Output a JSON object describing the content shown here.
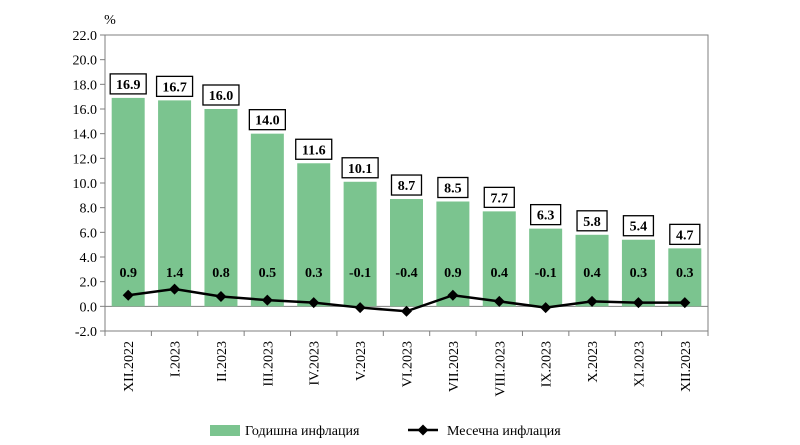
{
  "chart_data": {
    "type": "bar",
    "y_unit": "%",
    "ylim": [
      -2.0,
      22.0
    ],
    "y_ticks": [
      "22.0",
      "20.0",
      "18.0",
      "16.0",
      "14.0",
      "12.0",
      "10.0",
      "8.0",
      "6.0",
      "4.0",
      "2.0",
      "0.0",
      "-2.0"
    ],
    "categories": [
      "XII.2022",
      "I.2023",
      "II.2023",
      "III.2023",
      "IV.2023",
      "V.2023",
      "VI.2023",
      "VII.2023",
      "VIII.2023",
      "IX.2023",
      "X.2023",
      "XI.2023",
      "XII.2023"
    ],
    "series": [
      {
        "name": "Годишна инфлация",
        "kind": "bar",
        "color": "#7bc48f",
        "values": [
          16.9,
          16.7,
          16.0,
          14.0,
          11.6,
          10.1,
          8.7,
          8.5,
          7.7,
          6.3,
          5.8,
          5.4,
          4.7
        ],
        "labels": [
          "16.9",
          "16.7",
          "16.0",
          "14.0",
          "11.6",
          "10.1",
          "8.7",
          "8.5",
          "7.7",
          "6.3",
          "5.8",
          "5.4",
          "4.7"
        ]
      },
      {
        "name": "Месечна инфлация",
        "kind": "line",
        "color": "#000000",
        "values": [
          0.9,
          1.4,
          0.8,
          0.5,
          0.3,
          -0.1,
          -0.4,
          0.9,
          0.4,
          -0.1,
          0.4,
          0.3,
          0.3
        ],
        "labels": [
          "0.9",
          "1.4",
          "0.8",
          "0.5",
          "0.3",
          "-0.1",
          "-0.4",
          "0.9",
          "0.4",
          "-0.1",
          "0.4",
          "0.3",
          "0.3"
        ]
      }
    ],
    "legend_position": "bottom",
    "grid": false
  }
}
